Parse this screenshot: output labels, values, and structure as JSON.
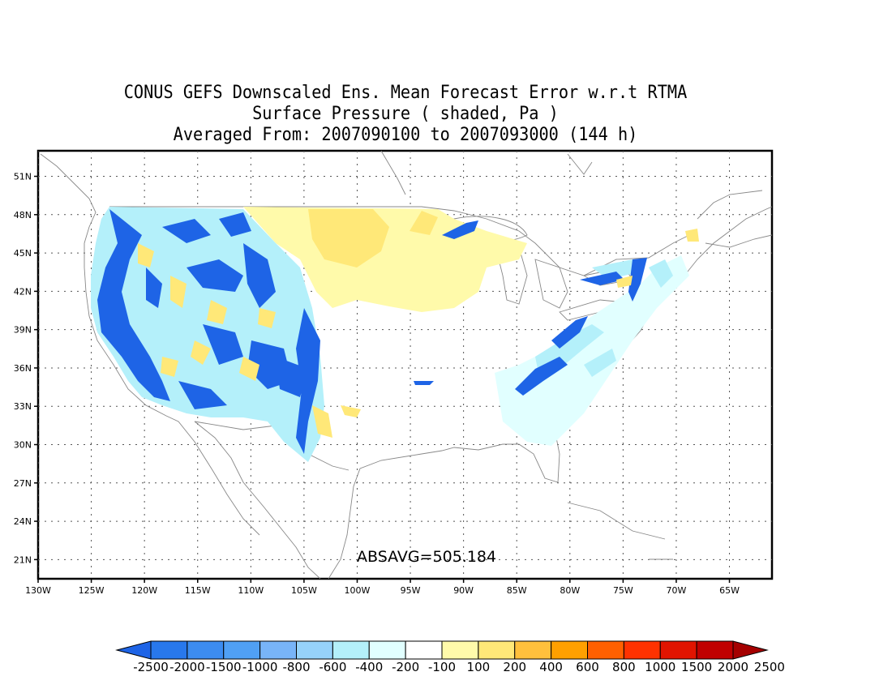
{
  "title": {
    "line1": "CONUS GEFS Downscaled Ens. Mean Forecast Error w.r.t RTMA",
    "line2": "Surface Pressure ( shaded, Pa )",
    "line3": "Averaged From: 2007090100 to 2007093000 (144 h)"
  },
  "stat_label": "ABSAVG=505.184",
  "map": {
    "lon_range": [
      -130,
      -61
    ],
    "lat_range": [
      19.5,
      53
    ],
    "grid": true,
    "lat_ticks": [
      "51N",
      "48N",
      "45N",
      "42N",
      "39N",
      "36N",
      "33N",
      "30N",
      "27N",
      "24N",
      "21N"
    ],
    "lat_values": [
      51,
      48,
      45,
      42,
      39,
      36,
      33,
      30,
      27,
      24,
      21
    ],
    "lon_ticks": [
      "130W",
      "125W",
      "120W",
      "115W",
      "110W",
      "105W",
      "100W",
      "95W",
      "90W",
      "85W",
      "80W",
      "75W",
      "70W",
      "65W"
    ],
    "lon_values": [
      -130,
      -125,
      -120,
      -115,
      -110,
      -105,
      -100,
      -95,
      -90,
      -85,
      -80,
      -75,
      -70,
      -65
    ]
  },
  "colorbar": {
    "labels": [
      "-2500",
      "-2000",
      "-1500",
      "-1000",
      "-800",
      "-600",
      "-400",
      "-200",
      "-100",
      "100",
      "200",
      "400",
      "600",
      "800",
      "1000",
      "1500",
      "2000",
      "2500"
    ],
    "colors": [
      "#1e64e6",
      "#2878ec",
      "#3c8cf0",
      "#50a0f4",
      "#78b4f8",
      "#96d2fa",
      "#b4f0fa",
      "#e1ffff",
      "#ffffff",
      "#fffaaa",
      "#ffe878",
      "#ffc03c",
      "#ffa000",
      "#ff6000",
      "#ff3200",
      "#e11400",
      "#c00000",
      "#a50000"
    ]
  }
}
